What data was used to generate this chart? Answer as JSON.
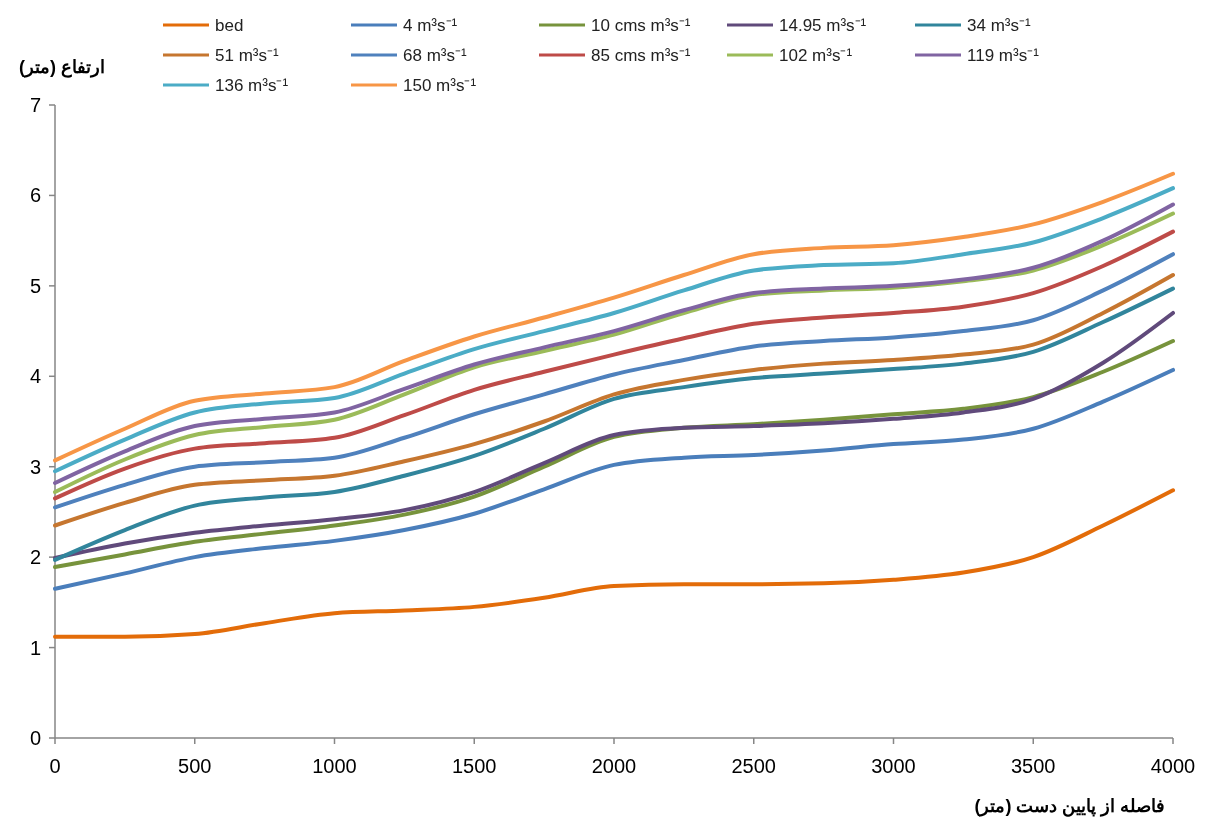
{
  "chart_data": {
    "type": "line",
    "xlabel": "فاصله از پایین دست (متر)",
    "ylabel": "ارتفاع (متر)",
    "x": [
      0,
      250,
      500,
      750,
      1000,
      1250,
      1500,
      1750,
      2000,
      2250,
      2500,
      2750,
      3000,
      3250,
      3500,
      3750,
      4000
    ],
    "xlim": [
      0,
      4000
    ],
    "xticks": [
      0,
      500,
      1000,
      1500,
      2000,
      2500,
      3000,
      3500,
      4000
    ],
    "ylim": [
      0,
      7
    ],
    "yticks": [
      0,
      1,
      2,
      3,
      4,
      5,
      6,
      7
    ],
    "grid": false,
    "legend": "top",
    "marker": "none",
    "line_style": "solid",
    "series": [
      {
        "name": "bed",
        "color": "#e36c09",
        "values": [
          1.12,
          1.12,
          1.15,
          1.27,
          1.38,
          1.41,
          1.45,
          1.55,
          1.68,
          1.7,
          1.7,
          1.71,
          1.75,
          1.83,
          2.0,
          2.35,
          2.74
        ]
      },
      {
        "name": "4 m³s⁻¹",
        "color": "#4a7ebb",
        "values": [
          1.65,
          1.82,
          2.0,
          2.1,
          2.18,
          2.3,
          2.48,
          2.75,
          3.02,
          3.1,
          3.13,
          3.18,
          3.25,
          3.3,
          3.42,
          3.72,
          4.07
        ]
      },
      {
        "name": "10 cms m³s⁻¹",
        "color": "#77933c",
        "values": [
          1.89,
          2.03,
          2.17,
          2.26,
          2.35,
          2.47,
          2.67,
          3.0,
          3.33,
          3.43,
          3.47,
          3.52,
          3.58,
          3.64,
          3.77,
          4.05,
          4.39
        ]
      },
      {
        "name": "14.95 m³s⁻¹",
        "color": "#604a7b",
        "values": [
          1.99,
          2.15,
          2.27,
          2.35,
          2.42,
          2.52,
          2.72,
          3.04,
          3.35,
          3.43,
          3.45,
          3.48,
          3.53,
          3.6,
          3.75,
          4.15,
          4.7
        ]
      },
      {
        "name": "34 m³s⁻¹",
        "color": "#31859c",
        "values": [
          1.97,
          2.3,
          2.57,
          2.66,
          2.72,
          2.9,
          3.12,
          3.42,
          3.75,
          3.88,
          3.98,
          4.03,
          4.08,
          4.14,
          4.27,
          4.6,
          4.97
        ]
      },
      {
        "name": "51 m³s⁻¹",
        "color": "#c6762f",
        "values": [
          2.35,
          2.6,
          2.8,
          2.85,
          2.9,
          3.06,
          3.25,
          3.5,
          3.8,
          3.96,
          4.07,
          4.14,
          4.18,
          4.24,
          4.35,
          4.7,
          5.12
        ]
      },
      {
        "name": "68 m³s⁻¹",
        "color": "#4f81bd",
        "values": [
          2.55,
          2.8,
          3.0,
          3.05,
          3.1,
          3.32,
          3.58,
          3.8,
          4.02,
          4.18,
          4.33,
          4.39,
          4.43,
          4.5,
          4.62,
          4.95,
          5.35
        ]
      },
      {
        "name": "85 cms m³s⁻¹",
        "color": "#be4b48",
        "values": [
          2.65,
          2.98,
          3.2,
          3.26,
          3.32,
          3.57,
          3.85,
          4.05,
          4.24,
          4.42,
          4.58,
          4.65,
          4.7,
          4.77,
          4.92,
          5.22,
          5.6
        ]
      },
      {
        "name": "102 m³s⁻¹",
        "color": "#9bbb59",
        "values": [
          2.72,
          3.08,
          3.35,
          3.44,
          3.52,
          3.8,
          4.1,
          4.28,
          4.46,
          4.7,
          4.9,
          4.95,
          4.98,
          5.05,
          5.17,
          5.45,
          5.8
        ]
      },
      {
        "name": "119 m³s⁻¹",
        "color": "#8064a2",
        "values": [
          2.82,
          3.17,
          3.45,
          3.53,
          3.6,
          3.86,
          4.13,
          4.32,
          4.5,
          4.73,
          4.92,
          4.97,
          5.0,
          5.07,
          5.2,
          5.5,
          5.9
        ]
      },
      {
        "name": "136 m³s⁻¹",
        "color": "#4bacc6",
        "values": [
          2.95,
          3.3,
          3.6,
          3.7,
          3.76,
          4.03,
          4.3,
          4.5,
          4.7,
          4.95,
          5.17,
          5.23,
          5.25,
          5.35,
          5.48,
          5.75,
          6.08
        ]
      },
      {
        "name": "150 m³s⁻¹",
        "color": "#f79646",
        "values": [
          3.07,
          3.42,
          3.73,
          3.81,
          3.88,
          4.17,
          4.44,
          4.65,
          4.87,
          5.12,
          5.35,
          5.42,
          5.45,
          5.54,
          5.68,
          5.93,
          6.24
        ]
      }
    ]
  }
}
